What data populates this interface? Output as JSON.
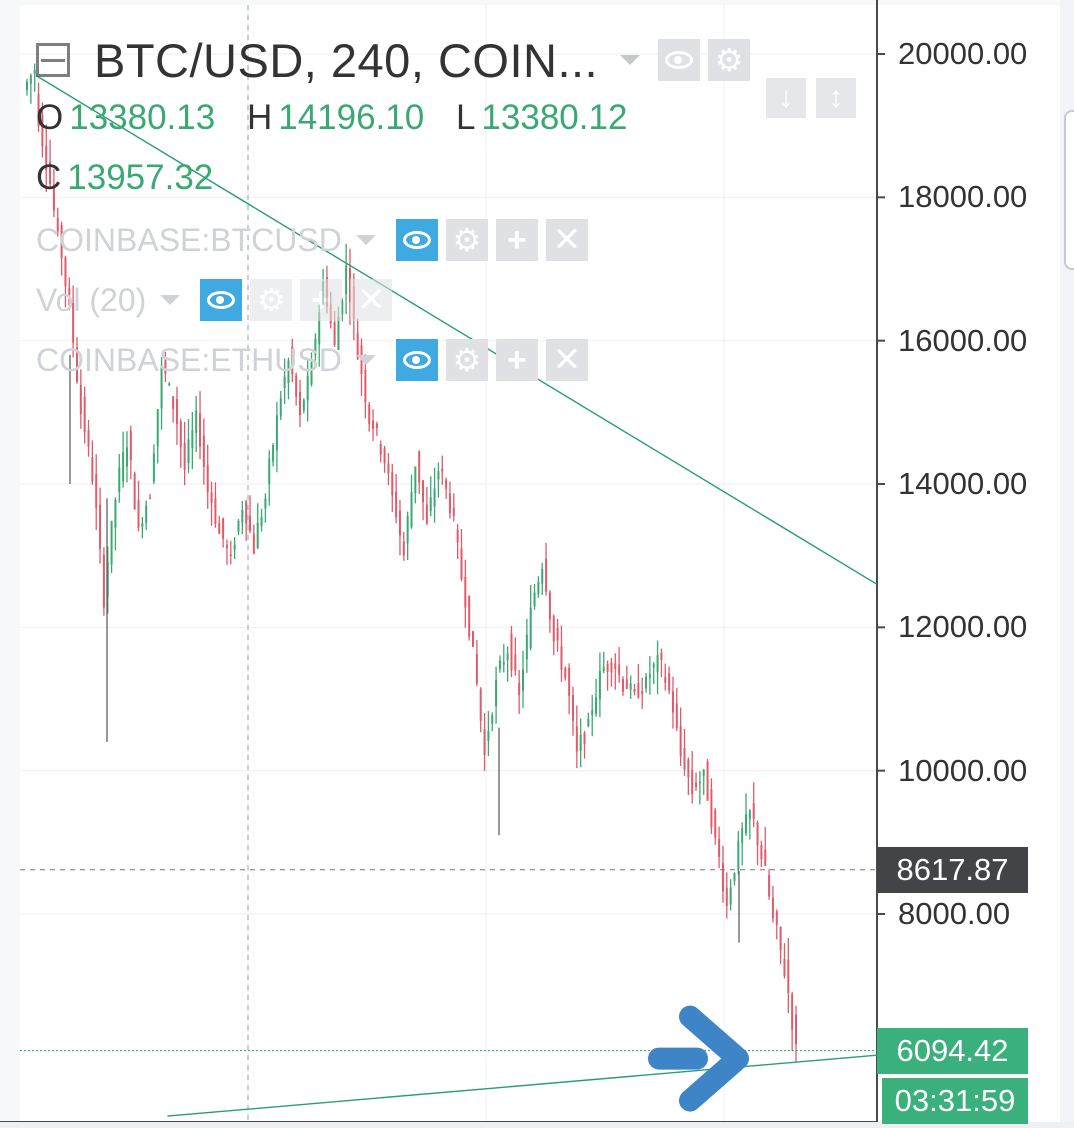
{
  "legend": {
    "symbol_title": "BTC/USD, 240, COIN...",
    "open_label": "O",
    "open_value": "13380.13",
    "high_label": "H",
    "high_value": "14196.10",
    "low_label": "L",
    "low_value": "13380.12",
    "close_label": "C",
    "close_value": "13957.32",
    "studies": [
      {
        "name": "COINBASE:BTCUSD"
      },
      {
        "name": "Vol (20)"
      },
      {
        "name": "COINBASE:ETHUSD"
      }
    ],
    "icons": {
      "collapse": "collapse-icon",
      "eye": "eye-icon",
      "gear": "gear-icon",
      "plus": "plus-icon",
      "close": "close-icon"
    }
  },
  "scale_buttons": {
    "down": "↓",
    "updown": "↕"
  },
  "price_axis": {
    "labels": [
      "20000.00",
      "18000.00",
      "16000.00",
      "14000.00",
      "12000.00",
      "10000.00",
      "8000.00"
    ]
  },
  "tags": {
    "last_price": "8617.87",
    "current_price": "6094.42",
    "countdown": "03:31:59"
  },
  "colors": {
    "up": "#3aa872",
    "down": "#e05a6a",
    "trendline": "#2a9d78",
    "arrow": "#3d85c6",
    "tag_dark": "#424447",
    "tag_green": "#3ab07c",
    "icon_blue": "#3fa9e1"
  },
  "chart_data": {
    "type": "candlestick",
    "symbol": "BTC/USD",
    "interval": "240",
    "ylim": [
      5000,
      20700
    ],
    "y_ticks": [
      8000,
      10000,
      12000,
      14000,
      16000,
      18000,
      20000
    ],
    "segments": [
      [
        19500,
        19800
      ],
      [
        19400,
        18500
      ],
      [
        18600,
        17400
      ],
      [
        17600,
        16400
      ],
      [
        16500,
        15000
      ],
      [
        15100,
        14100
      ],
      [
        14200,
        12400
      ],
      [
        12500,
        13800
      ],
      [
        13900,
        14600
      ],
      [
        14700,
        13300
      ],
      [
        13400,
        13900
      ],
      [
        14000,
        15600
      ],
      [
        15700,
        15100
      ],
      [
        15200,
        14200
      ],
      [
        14300,
        14900
      ],
      [
        15000,
        13900
      ],
      [
        14000,
        13300
      ],
      [
        13400,
        12900
      ],
      [
        13000,
        13700
      ],
      [
        13800,
        13100
      ],
      [
        13200,
        13800
      ],
      [
        13900,
        14900
      ],
      [
        15000,
        15700
      ],
      [
        15800,
        14900
      ],
      [
        15000,
        15600
      ],
      [
        15700,
        16800
      ],
      [
        16900,
        15900
      ],
      [
        16000,
        17000
      ],
      [
        17100,
        15800
      ],
      [
        15900,
        14900
      ],
      [
        15000,
        14500
      ],
      [
        14600,
        13800
      ],
      [
        13900,
        13000
      ],
      [
        13100,
        14300
      ],
      [
        14400,
        13400
      ],
      [
        13500,
        14200
      ],
      [
        14300,
        13700
      ],
      [
        13800,
        12700
      ],
      [
        12800,
        11600
      ],
      [
        11700,
        10200
      ],
      [
        10300,
        11200
      ],
      [
        11300,
        11700
      ],
      [
        11800,
        11000
      ],
      [
        11100,
        12200
      ],
      [
        12300,
        12900
      ],
      [
        13000,
        11800
      ],
      [
        11900,
        11300
      ],
      [
        11400,
        10200
      ],
      [
        10300,
        10600
      ],
      [
        10700,
        11300
      ],
      [
        11400,
        11500
      ],
      [
        11600,
        11200
      ],
      [
        11300,
        11000
      ],
      [
        11100,
        11200
      ],
      [
        11300,
        11500
      ],
      [
        11600,
        11100
      ],
      [
        11200,
        10200
      ],
      [
        10300,
        9700
      ],
      [
        9800,
        9900
      ],
      [
        10000,
        9000
      ],
      [
        9100,
        8100
      ],
      [
        8200,
        8900
      ],
      [
        9000,
        9400
      ],
      [
        9500,
        8800
      ],
      [
        8900,
        7900
      ],
      [
        8000,
        7200
      ],
      [
        7300,
        6100
      ]
    ],
    "trendlines": [
      {
        "from": {
          "bar": 0,
          "price": 19700
        },
        "to": {
          "bar": 160,
          "price": 12600
        }
      },
      {
        "from": {
          "bar": 25,
          "price": 5180
        },
        "to": {
          "bar": 160,
          "price": 6030
        }
      }
    ],
    "horizontal_lines": [
      {
        "price": 8617.87,
        "style": "dashed"
      },
      {
        "price": 6094.42,
        "style": "dotted"
      }
    ],
    "annotation": {
      "type": "arrow",
      "direction": "right",
      "price": 6094.42
    }
  }
}
